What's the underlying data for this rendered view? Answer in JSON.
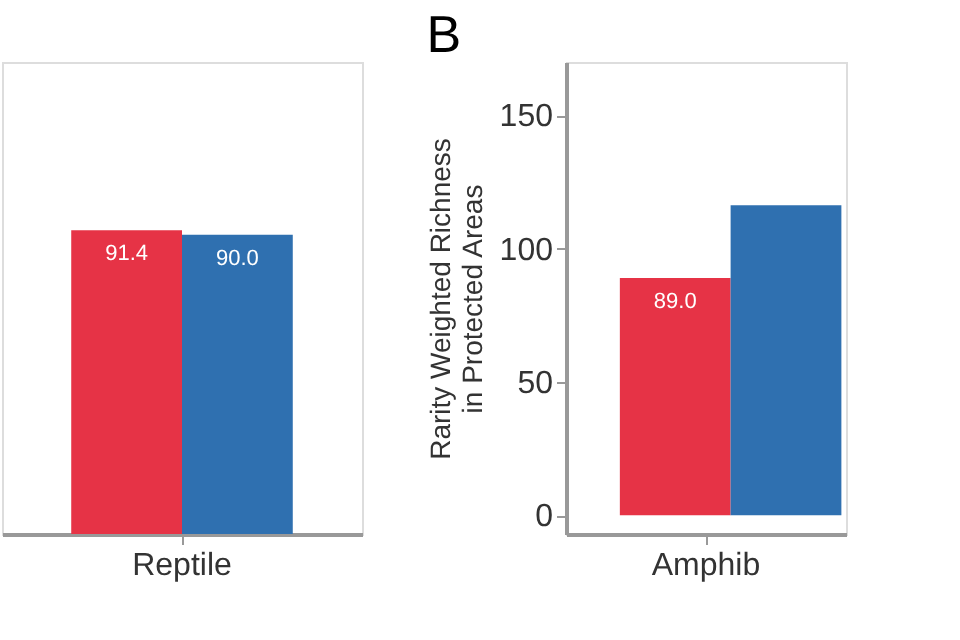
{
  "chart_data": [
    {
      "type": "bar",
      "categories": [
        "Reptile"
      ],
      "ylim": [
        0,
        142
      ],
      "tick_labels": "x",
      "series": [
        {
          "color": "#e63346",
          "values": [
            91.4
          ],
          "value_labels": [
            "91.4"
          ]
        },
        {
          "color": "#2f70b0",
          "values": [
            90.0
          ],
          "value_labels": [
            "90.0"
          ]
        }
      ]
    },
    {
      "type": "bar",
      "title": "B",
      "ylabel": "Rarity Weighted Richness\nin Protected Areas",
      "categories": [
        "Amphib"
      ],
      "ylim": [
        -7,
        170
      ],
      "yticks": [
        0,
        50,
        100,
        150
      ],
      "series": [
        {
          "color": "#e63346",
          "values": [
            89.0
          ],
          "value_labels": [
            "89.0"
          ]
        },
        {
          "color": "#2f70b0",
          "values": [
            116.3
          ],
          "value_labels": [
            null
          ]
        }
      ]
    }
  ]
}
